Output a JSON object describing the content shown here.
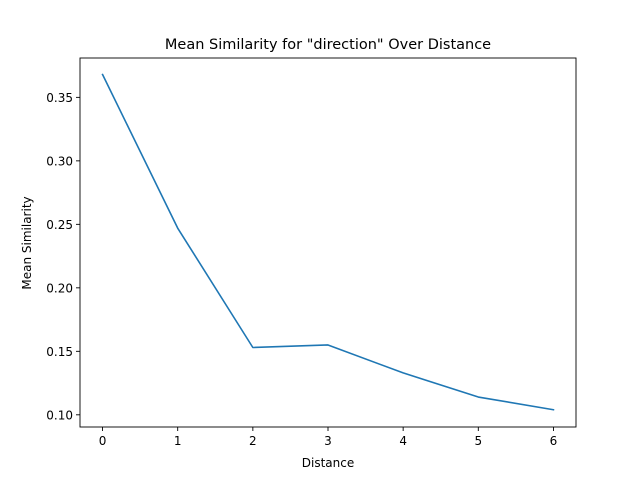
{
  "chart_data": {
    "type": "line",
    "title": "Mean Similarity for \"direction\" Over Distance",
    "xlabel": "Distance",
    "ylabel": "Mean Similarity",
    "x": [
      0,
      1,
      2,
      3,
      4,
      5,
      6
    ],
    "series": [
      {
        "values": [
          0.368,
          0.247,
          0.153,
          0.155,
          0.133,
          0.114,
          0.104
        ]
      }
    ],
    "xlim": [
      -0.3,
      6.3
    ],
    "ylim": [
      0.0904,
      0.381
    ],
    "xticks": [
      "0",
      "1",
      "2",
      "3",
      "4",
      "5",
      "6"
    ],
    "yticks": [
      "0.10",
      "0.15",
      "0.20",
      "0.25",
      "0.30",
      "0.35"
    ],
    "grid": false,
    "legend": "none",
    "colors": {
      "line": "#1f77b4"
    }
  }
}
